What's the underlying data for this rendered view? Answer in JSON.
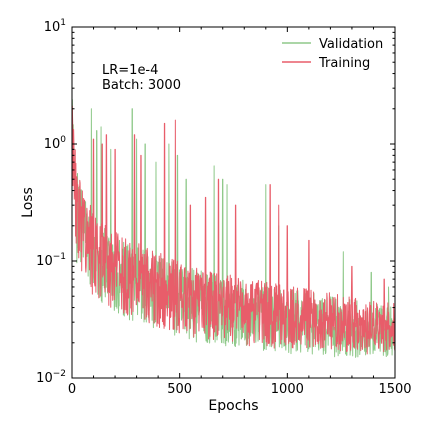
{
  "chart_data": {
    "type": "line",
    "xlabel": "Epochs",
    "ylabel": "Loss",
    "xlim": [
      0,
      1500
    ],
    "ylim": [
      0.01,
      10
    ],
    "yscale": "log",
    "grid": false,
    "legend_position": "top-right",
    "x_ticks": [
      {
        "value": 0,
        "label": "0"
      },
      {
        "value": 500,
        "label": "500"
      },
      {
        "value": 1000,
        "label": "1000"
      },
      {
        "value": 1500,
        "label": "1500"
      }
    ],
    "y_ticks": [
      {
        "value": 0.01,
        "base": "10",
        "exp": "−2"
      },
      {
        "value": 0.1,
        "base": "10",
        "exp": "−1"
      },
      {
        "value": 1,
        "base": "10",
        "exp": "0"
      },
      {
        "value": 10,
        "base": "10",
        "exp": "1"
      }
    ],
    "annotations": [
      "LR=1e-4",
      "Batch: 3000"
    ],
    "series": [
      {
        "name": "Validation",
        "color": "#8fc98a",
        "x": [
          0,
          10,
          25,
          50,
          75,
          100,
          150,
          200,
          250,
          300,
          350,
          400,
          450,
          500,
          600,
          700,
          800,
          900,
          1000,
          1100,
          1200,
          1300,
          1400,
          1500
        ],
        "values": [
          2.0,
          0.55,
          0.32,
          0.22,
          0.16,
          0.13,
          0.11,
          0.095,
          0.085,
          0.075,
          0.068,
          0.062,
          0.058,
          0.052,
          0.046,
          0.042,
          0.038,
          0.035,
          0.032,
          0.03,
          0.028,
          0.026,
          0.024,
          0.023
        ],
        "spikes": [
          {
            "x": 90,
            "y": 2.0
          },
          {
            "x": 115,
            "y": 1.3
          },
          {
            "x": 135,
            "y": 1.4
          },
          {
            "x": 180,
            "y": 0.9
          },
          {
            "x": 280,
            "y": 2.0
          },
          {
            "x": 300,
            "y": 1.1
          },
          {
            "x": 340,
            "y": 1.0
          },
          {
            "x": 390,
            "y": 0.7
          },
          {
            "x": 450,
            "y": 1.0
          },
          {
            "x": 490,
            "y": 0.8
          },
          {
            "x": 530,
            "y": 0.5
          },
          {
            "x": 660,
            "y": 0.65
          },
          {
            "x": 700,
            "y": 0.5
          },
          {
            "x": 720,
            "y": 0.45
          },
          {
            "x": 900,
            "y": 0.45
          },
          {
            "x": 960,
            "y": 0.2
          },
          {
            "x": 1260,
            "y": 0.12
          },
          {
            "x": 1390,
            "y": 0.08
          },
          {
            "x": 1470,
            "y": 0.06
          }
        ],
        "min_values": [
          0.3,
          0.13,
          0.09,
          0.07,
          0.055,
          0.045,
          0.04,
          0.035,
          0.032,
          0.03,
          0.028,
          0.025,
          0.023,
          0.021,
          0.02,
          0.019,
          0.018,
          0.017,
          0.016,
          0.016,
          0.015,
          0.015,
          0.015,
          0.015
        ]
      },
      {
        "name": "Training",
        "color": "#e85d6a",
        "x": [
          0,
          10,
          25,
          50,
          75,
          100,
          150,
          200,
          250,
          300,
          350,
          400,
          450,
          500,
          600,
          700,
          800,
          900,
          1000,
          1100,
          1200,
          1300,
          1400,
          1500
        ],
        "values": [
          2.0,
          0.6,
          0.35,
          0.24,
          0.18,
          0.15,
          0.12,
          0.1,
          0.09,
          0.08,
          0.072,
          0.066,
          0.06,
          0.055,
          0.048,
          0.044,
          0.04,
          0.037,
          0.034,
          0.032,
          0.03,
          0.028,
          0.026,
          0.025
        ],
        "spikes": [
          {
            "x": 100,
            "y": 1.1
          },
          {
            "x": 140,
            "y": 1.0
          },
          {
            "x": 160,
            "y": 1.2
          },
          {
            "x": 200,
            "y": 0.9
          },
          {
            "x": 290,
            "y": 1.2
          },
          {
            "x": 320,
            "y": 0.8
          },
          {
            "x": 430,
            "y": 1.5
          },
          {
            "x": 480,
            "y": 1.6
          },
          {
            "x": 550,
            "y": 0.3
          },
          {
            "x": 620,
            "y": 0.35
          },
          {
            "x": 680,
            "y": 0.5
          },
          {
            "x": 760,
            "y": 0.3
          },
          {
            "x": 920,
            "y": 0.45
          },
          {
            "x": 960,
            "y": 0.3
          },
          {
            "x": 1000,
            "y": 0.2
          },
          {
            "x": 1100,
            "y": 0.15
          },
          {
            "x": 1300,
            "y": 0.09
          },
          {
            "x": 1450,
            "y": 0.07
          }
        ],
        "min_values": [
          0.35,
          0.14,
          0.1,
          0.075,
          0.06,
          0.05,
          0.043,
          0.038,
          0.035,
          0.032,
          0.03,
          0.027,
          0.025,
          0.023,
          0.022,
          0.02,
          0.019,
          0.018,
          0.018,
          0.017,
          0.017,
          0.016,
          0.016,
          0.016
        ]
      }
    ]
  }
}
